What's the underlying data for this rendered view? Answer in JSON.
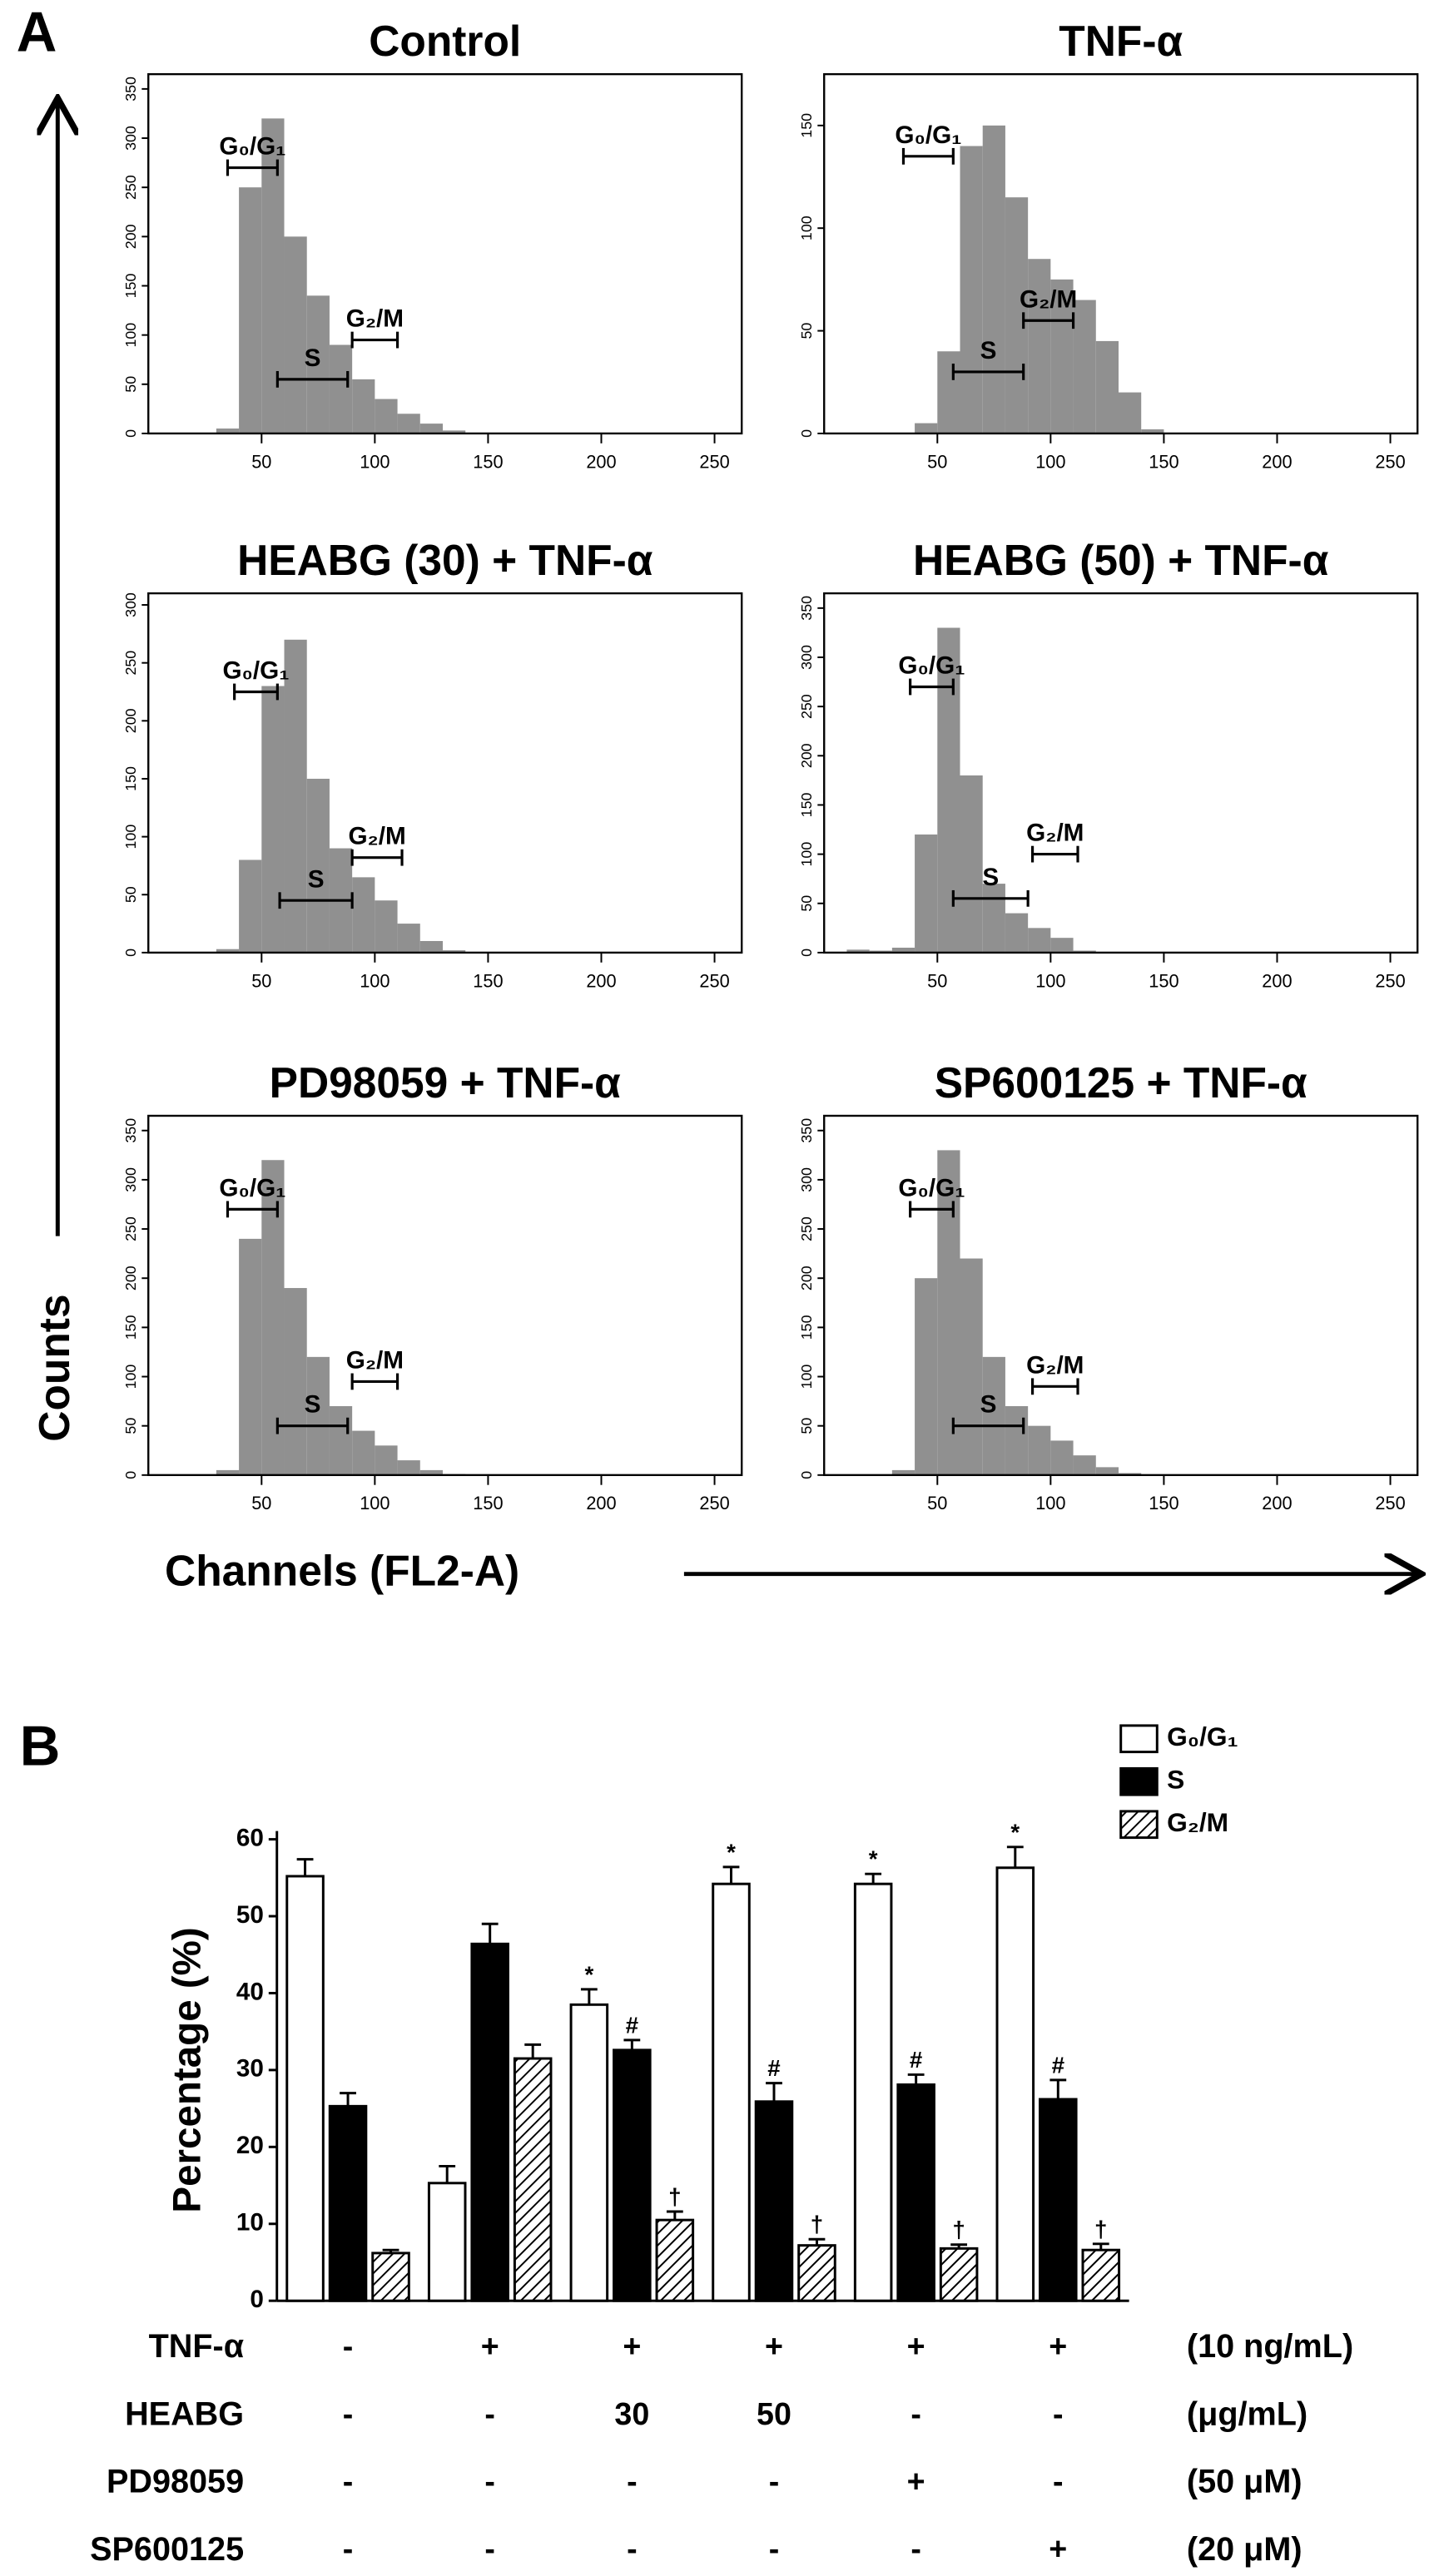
{
  "figure": {
    "panel_labels": [
      "A",
      "B"
    ],
    "y_label": "Counts",
    "x_label": "Channels (FL2-A)"
  },
  "chart_data": [
    {
      "type": "histogram",
      "title": "Control",
      "color": "#909090",
      "bins": [
        0,
        10,
        20,
        30,
        40,
        50,
        60,
        70,
        80,
        90,
        100,
        110,
        120,
        130,
        140,
        150,
        160,
        170,
        180,
        190,
        200,
        210,
        220,
        230,
        240,
        250,
        260
      ],
      "values": [
        0,
        0,
        0,
        5,
        250,
        320,
        200,
        140,
        90,
        55,
        35,
        20,
        10,
        3,
        0,
        0,
        0,
        0,
        0,
        0,
        0,
        0,
        0,
        0,
        0,
        0
      ],
      "xlim": [
        0,
        262
      ],
      "ylim": [
        0,
        365
      ],
      "xticks": [
        50,
        100,
        150,
        200,
        250
      ],
      "yticks": [
        0,
        50,
        100,
        150,
        200,
        250,
        300,
        350
      ],
      "gates": [
        {
          "label": "G₀/G₁",
          "range": [
            35,
            57
          ],
          "level": 270
        },
        {
          "label": "S",
          "range": [
            57,
            88
          ],
          "level": 55
        },
        {
          "label": "G₂/M",
          "range": [
            90,
            110
          ],
          "level": 95
        }
      ]
    },
    {
      "type": "histogram",
      "title": "TNF-α",
      "color": "#909090",
      "bins": [
        0,
        10,
        20,
        30,
        40,
        50,
        60,
        70,
        80,
        90,
        100,
        110,
        120,
        130,
        140,
        150,
        160,
        170,
        180,
        190,
        200,
        210,
        220,
        230,
        240,
        250,
        260
      ],
      "values": [
        0,
        0,
        0,
        0,
        5,
        40,
        140,
        150,
        115,
        85,
        75,
        65,
        45,
        20,
        2,
        0,
        0,
        0,
        0,
        0,
        0,
        0,
        0,
        0,
        0,
        0
      ],
      "xlim": [
        0,
        262
      ],
      "ylim": [
        0,
        175
      ],
      "xticks": [
        50,
        100,
        150,
        200,
        250
      ],
      "yticks": [
        0,
        50,
        100,
        150
      ],
      "gates": [
        {
          "label": "G₀/G₁",
          "range": [
            35,
            57
          ],
          "level": 135
        },
        {
          "label": "S",
          "range": [
            57,
            88
          ],
          "level": 30
        },
        {
          "label": "G₂/M",
          "range": [
            88,
            110
          ],
          "level": 55
        }
      ]
    },
    {
      "type": "histogram",
      "title": "HEABG (30) + TNF-α",
      "color": "#909090",
      "bins": [
        0,
        10,
        20,
        30,
        40,
        50,
        60,
        70,
        80,
        90,
        100,
        110,
        120,
        130,
        140,
        150,
        160,
        170,
        180,
        190,
        200,
        210,
        220,
        230,
        240,
        250,
        260
      ],
      "values": [
        0,
        0,
        0,
        3,
        80,
        230,
        270,
        150,
        90,
        65,
        45,
        25,
        10,
        2,
        0,
        0,
        0,
        0,
        0,
        0,
        0,
        0,
        0,
        0,
        0,
        0
      ],
      "xlim": [
        0,
        262
      ],
      "ylim": [
        0,
        310
      ],
      "xticks": [
        50,
        100,
        150,
        200,
        250
      ],
      "yticks": [
        0,
        50,
        100,
        150,
        200,
        250,
        300
      ],
      "gates": [
        {
          "label": "G₀/G₁",
          "range": [
            38,
            57
          ],
          "level": 225
        },
        {
          "label": "S",
          "range": [
            58,
            90
          ],
          "level": 45
        },
        {
          "label": "G₂/M",
          "range": [
            90,
            112
          ],
          "level": 82
        }
      ]
    },
    {
      "type": "histogram",
      "title": "HEABG (50) + TNF-α",
      "color": "#909090",
      "bins": [
        0,
        10,
        20,
        30,
        40,
        50,
        60,
        70,
        80,
        90,
        100,
        110,
        120,
        130,
        140,
        150,
        160,
        170,
        180,
        190,
        200,
        210,
        220,
        230,
        240,
        250,
        260
      ],
      "values": [
        0,
        3,
        2,
        5,
        120,
        330,
        180,
        70,
        40,
        25,
        15,
        2,
        0,
        0,
        0,
        0,
        0,
        0,
        0,
        0,
        0,
        0,
        0,
        0,
        0,
        0
      ],
      "xlim": [
        0,
        262
      ],
      "ylim": [
        0,
        365
      ],
      "xticks": [
        50,
        100,
        150,
        200,
        250
      ],
      "yticks": [
        0,
        50,
        100,
        150,
        200,
        250,
        300,
        350
      ],
      "gates": [
        {
          "label": "G₀/G₁",
          "range": [
            38,
            57
          ],
          "level": 270
        },
        {
          "label": "S",
          "range": [
            57,
            90
          ],
          "level": 55
        },
        {
          "label": "G₂/M",
          "range": [
            92,
            112
          ],
          "level": 100
        }
      ]
    },
    {
      "type": "histogram",
      "title": "PD98059 + TNF-α",
      "color": "#909090",
      "bins": [
        0,
        10,
        20,
        30,
        40,
        50,
        60,
        70,
        80,
        90,
        100,
        110,
        120,
        130,
        140,
        150,
        160,
        170,
        180,
        190,
        200,
        210,
        220,
        230,
        240,
        250,
        260
      ],
      "values": [
        0,
        0,
        0,
        5,
        240,
        320,
        190,
        120,
        70,
        45,
        30,
        15,
        5,
        1,
        0,
        0,
        0,
        0,
        0,
        0,
        0,
        0,
        0,
        0,
        0,
        0
      ],
      "xlim": [
        0,
        262
      ],
      "ylim": [
        0,
        365
      ],
      "xticks": [
        50,
        100,
        150,
        200,
        250
      ],
      "yticks": [
        0,
        50,
        100,
        150,
        200,
        250,
        300,
        350
      ],
      "gates": [
        {
          "label": "G₀/G₁",
          "range": [
            35,
            57
          ],
          "level": 270
        },
        {
          "label": "S",
          "range": [
            57,
            88
          ],
          "level": 50
        },
        {
          "label": "G₂/M",
          "range": [
            90,
            110
          ],
          "level": 95
        }
      ]
    },
    {
      "type": "histogram",
      "title": "SP600125 + TNF-α",
      "color": "#909090",
      "bins": [
        0,
        10,
        20,
        30,
        40,
        50,
        60,
        70,
        80,
        90,
        100,
        110,
        120,
        130,
        140,
        150,
        160,
        170,
        180,
        190,
        200,
        210,
        220,
        230,
        240,
        250,
        260
      ],
      "values": [
        0,
        0,
        0,
        5,
        200,
        330,
        220,
        120,
        70,
        50,
        35,
        20,
        8,
        2,
        0,
        0,
        0,
        0,
        0,
        0,
        0,
        0,
        0,
        0,
        0,
        0
      ],
      "xlim": [
        0,
        262
      ],
      "ylim": [
        0,
        365
      ],
      "xticks": [
        50,
        100,
        150,
        200,
        250
      ],
      "yticks": [
        0,
        50,
        100,
        150,
        200,
        250,
        300,
        350
      ],
      "gates": [
        {
          "label": "G₀/G₁",
          "range": [
            38,
            57
          ],
          "level": 270
        },
        {
          "label": "S",
          "range": [
            57,
            88
          ],
          "level": 50
        },
        {
          "label": "G₂/M",
          "range": [
            92,
            112
          ],
          "level": 90
        }
      ]
    },
    {
      "type": "bar",
      "ylabel": "Percentage (%)",
      "legend": "top-right",
      "categories": [
        null,
        null,
        null,
        null,
        null,
        null
      ],
      "ylim": [
        0,
        60
      ],
      "yticks": [
        0,
        10,
        20,
        30,
        40,
        50,
        60
      ],
      "series": [
        {
          "name": "G₀/G₁",
          "color": "#ffffff",
          "values": [
            55.2,
            15.3,
            38.5,
            54.2,
            54.2,
            56.3
          ],
          "errors": [
            2.2,
            2.2,
            2.0,
            2.2,
            1.3,
            2.7
          ],
          "annotations": [
            null,
            null,
            "*",
            "*",
            "*",
            "*"
          ]
        },
        {
          "name": "S",
          "color": "#000000",
          "values": [
            25.3,
            46.4,
            32.6,
            25.9,
            28.1,
            26.2
          ],
          "errors": [
            1.7,
            2.6,
            1.3,
            2.4,
            1.3,
            2.5
          ],
          "annotations": [
            null,
            null,
            "#",
            "#",
            "#",
            "#"
          ]
        },
        {
          "name": "G₂/M",
          "color": "#000000",
          "hatch": true,
          "values": [
            6.2,
            31.5,
            10.5,
            7.2,
            6.8,
            6.6
          ],
          "errors": [
            0.4,
            1.8,
            1.1,
            0.8,
            0.5,
            0.8
          ],
          "annotations": [
            null,
            null,
            "†",
            "†",
            "†",
            "†"
          ]
        }
      ],
      "treatments": [
        {
          "name": "TNF-α",
          "levels": [
            "-",
            "+",
            "+",
            "+",
            "+",
            "+"
          ],
          "unit": "(10 ng/mL)"
        },
        {
          "name": "HEABG",
          "levels": [
            "-",
            "-",
            "30",
            "50",
            "-",
            "-"
          ],
          "unit": "(μg/mL)"
        },
        {
          "name": "PD98059",
          "levels": [
            "-",
            "-",
            "-",
            "-",
            "+",
            "-"
          ],
          "unit": "(50 μM)"
        },
        {
          "name": "SP600125",
          "levels": [
            "-",
            "-",
            "-",
            "-",
            "-",
            "+"
          ],
          "unit": "(20 μM)"
        }
      ]
    }
  ]
}
